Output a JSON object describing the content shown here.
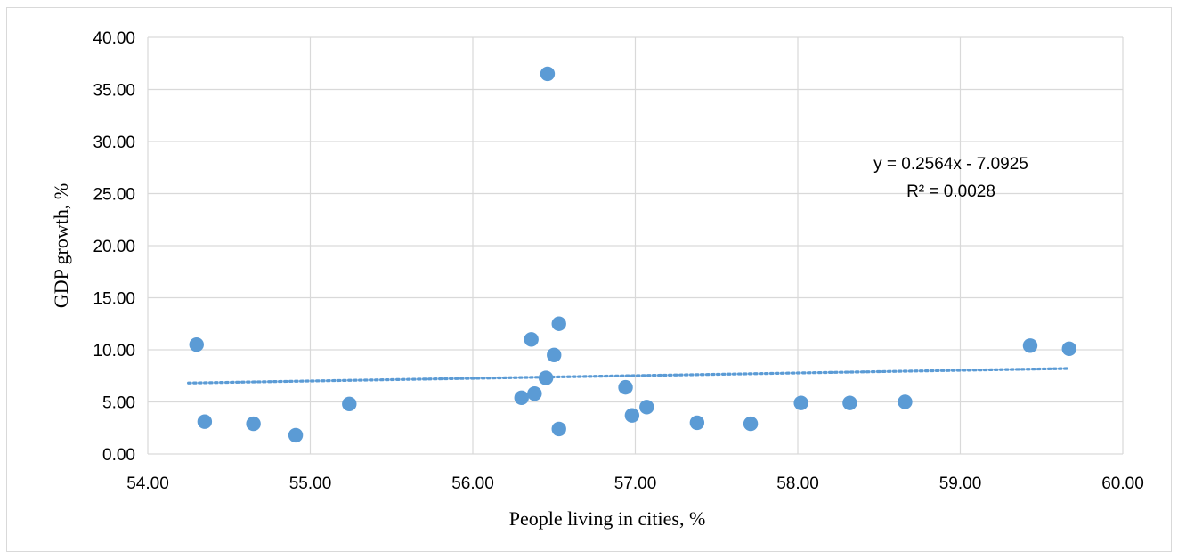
{
  "chart_data": {
    "type": "scatter",
    "title": "",
    "xlabel": "People living in cities, %",
    "ylabel": "GDP growth, %",
    "xlim": [
      54.0,
      60.0
    ],
    "ylim": [
      0.0,
      40.0
    ],
    "x_ticks": [
      "54.00",
      "55.00",
      "56.00",
      "57.00",
      "58.00",
      "59.00",
      "60.00"
    ],
    "y_ticks": [
      "0.00",
      "5.00",
      "10.00",
      "15.00",
      "20.00",
      "25.00",
      "30.00",
      "35.00",
      "40.00"
    ],
    "grid": true,
    "marker_color": "#5b9bd5",
    "trendline_color": "#5b9bd5",
    "points": [
      {
        "x": 54.3,
        "y": 10.5
      },
      {
        "x": 54.35,
        "y": 3.1
      },
      {
        "x": 54.65,
        "y": 2.9
      },
      {
        "x": 54.91,
        "y": 1.8
      },
      {
        "x": 55.24,
        "y": 4.8
      },
      {
        "x": 56.3,
        "y": 5.4
      },
      {
        "x": 56.36,
        "y": 11.0
      },
      {
        "x": 56.38,
        "y": 5.8
      },
      {
        "x": 56.45,
        "y": 7.3
      },
      {
        "x": 56.46,
        "y": 36.5
      },
      {
        "x": 56.5,
        "y": 9.5
      },
      {
        "x": 56.53,
        "y": 12.5
      },
      {
        "x": 56.53,
        "y": 2.4
      },
      {
        "x": 56.94,
        "y": 6.4
      },
      {
        "x": 56.98,
        "y": 3.7
      },
      {
        "x": 57.07,
        "y": 4.5
      },
      {
        "x": 57.38,
        "y": 3.0
      },
      {
        "x": 57.71,
        "y": 2.9
      },
      {
        "x": 58.02,
        "y": 4.9
      },
      {
        "x": 58.32,
        "y": 4.9
      },
      {
        "x": 58.66,
        "y": 5.0
      },
      {
        "x": 59.43,
        "y": 10.4
      },
      {
        "x": 59.67,
        "y": 10.1
      }
    ],
    "trendline": {
      "type": "linear",
      "slope": 0.2564,
      "intercept": -7.0925,
      "equation": "y = 0.2564x - 7.0925",
      "r_squared": "R² = 0.0028"
    }
  }
}
